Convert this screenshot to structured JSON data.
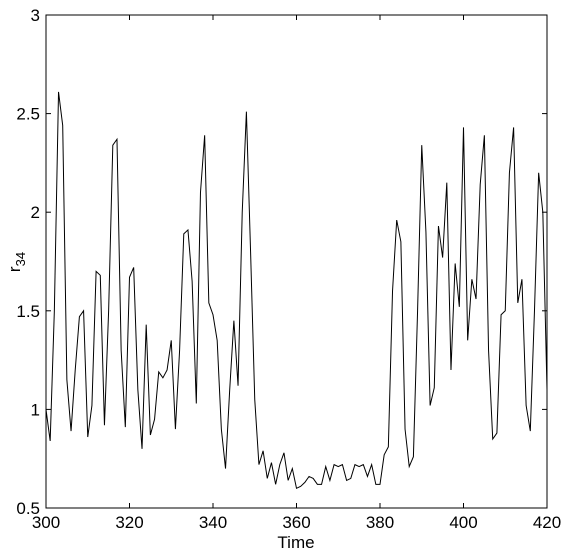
{
  "chart_data": {
    "type": "line",
    "xlabel": "Time",
    "ylabel": "r",
    "ylabel_sub": "34",
    "x": [
      300,
      301,
      302,
      303,
      304,
      305,
      306,
      307,
      308,
      309,
      310,
      311,
      312,
      313,
      314,
      315,
      316,
      317,
      318,
      319,
      320,
      321,
      322,
      323,
      324,
      325,
      326,
      327,
      328,
      329,
      330,
      331,
      332,
      333,
      334,
      335,
      336,
      337,
      338,
      339,
      340,
      341,
      342,
      343,
      344,
      345,
      346,
      347,
      348,
      349,
      350,
      351,
      352,
      353,
      354,
      355,
      356,
      357,
      358,
      359,
      360,
      361,
      362,
      363,
      364,
      365,
      366,
      367,
      368,
      369,
      370,
      371,
      372,
      373,
      374,
      375,
      376,
      377,
      378,
      379,
      380,
      381,
      382,
      383,
      384,
      385,
      386,
      387,
      388,
      389,
      390,
      391,
      392,
      393,
      394,
      395,
      396,
      397,
      398,
      399,
      400,
      401,
      402,
      403,
      404,
      405,
      406,
      407,
      408,
      409,
      410,
      411,
      412,
      413,
      414,
      415,
      416,
      417,
      418,
      419,
      420
    ],
    "series": [
      {
        "color": "#000000",
        "values": [
          1.0,
          0.84,
          1.5,
          2.61,
          2.44,
          1.15,
          0.89,
          1.2,
          1.47,
          1.5,
          0.86,
          1.02,
          1.7,
          1.68,
          0.92,
          1.5,
          2.34,
          2.37,
          1.3,
          0.91,
          1.67,
          1.72,
          1.1,
          0.8,
          1.43,
          0.87,
          0.95,
          1.19,
          1.16,
          1.2,
          1.35,
          0.9,
          1.3,
          1.89,
          1.91,
          1.65,
          1.03,
          2.1,
          2.39,
          1.54,
          1.48,
          1.35,
          0.9,
          0.7,
          1.1,
          1.45,
          1.12,
          2.0,
          2.51,
          1.8,
          1.05,
          0.72,
          0.79,
          0.65,
          0.73,
          0.62,
          0.72,
          0.78,
          0.64,
          0.7,
          0.6,
          0.61,
          0.63,
          0.66,
          0.65,
          0.62,
          0.62,
          0.71,
          0.64,
          0.72,
          0.71,
          0.72,
          0.64,
          0.65,
          0.72,
          0.71,
          0.72,
          0.66,
          0.72,
          0.62,
          0.62,
          0.77,
          0.81,
          1.6,
          1.96,
          1.85,
          0.9,
          0.71,
          0.76,
          1.5,
          2.34,
          1.9,
          1.02,
          1.11,
          1.93,
          1.77,
          2.15,
          1.2,
          1.74,
          1.52,
          2.43,
          1.35,
          1.66,
          1.56,
          2.14,
          2.39,
          1.3,
          0.85,
          0.88,
          1.48,
          1.5,
          2.2,
          2.43,
          1.54,
          1.66,
          1.02,
          0.89,
          1.5,
          2.2,
          2.0,
          1.1
        ]
      }
    ],
    "xlim": [
      300,
      420
    ],
    "xticks": [
      300,
      320,
      340,
      360,
      380,
      400,
      420
    ],
    "ylim": [
      0.5,
      3
    ],
    "yticks": [
      0.5,
      1,
      1.5,
      2,
      2.5,
      3
    ]
  }
}
